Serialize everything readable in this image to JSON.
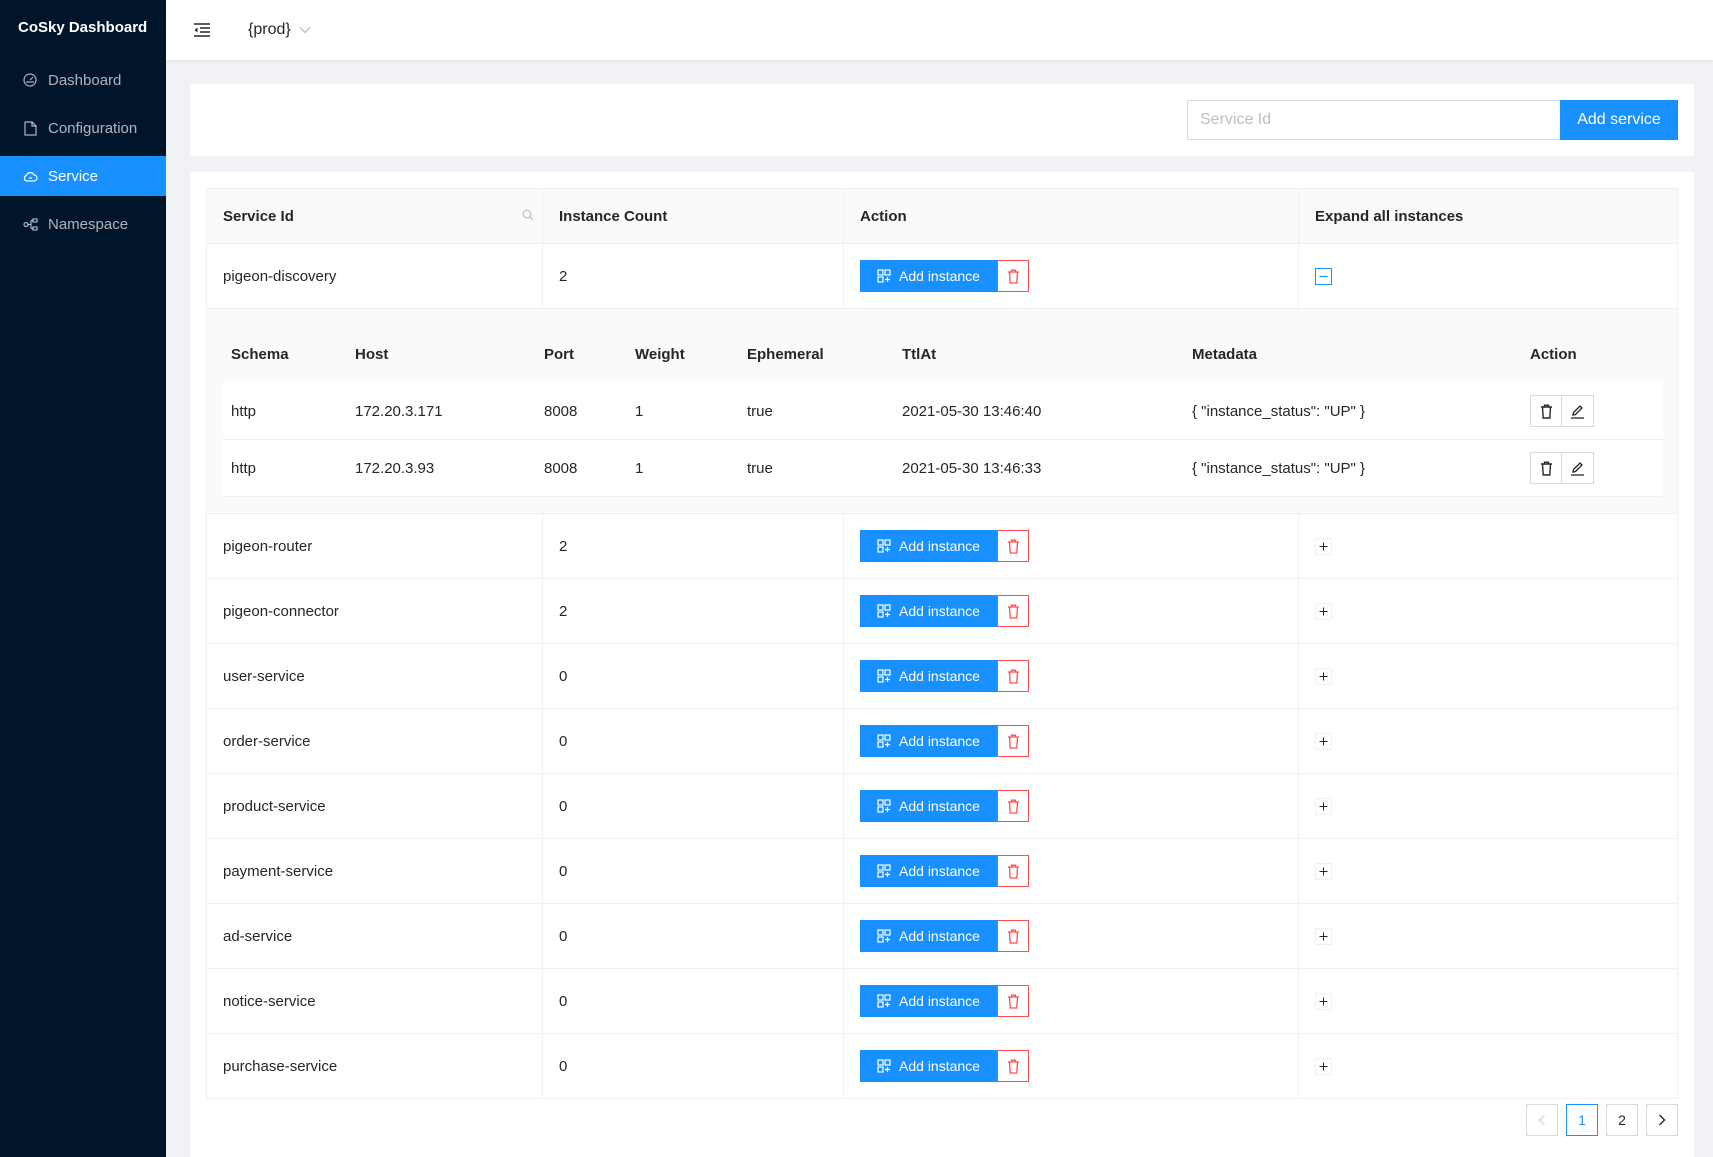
{
  "app": {
    "title": "CoSky Dashboard"
  },
  "sidebar": {
    "items": [
      {
        "label": "Dashboard",
        "icon": "dashboard-icon"
      },
      {
        "label": "Configuration",
        "icon": "file-icon"
      },
      {
        "label": "Service",
        "icon": "cloud-icon",
        "active": true
      },
      {
        "label": "Namespace",
        "icon": "cluster-icon"
      }
    ]
  },
  "header": {
    "namespace": "{prod}"
  },
  "search": {
    "placeholder": "Service Id",
    "value": "",
    "add_label": "Add service"
  },
  "table": {
    "headers": {
      "service_id": "Service Id",
      "instance_count": "Instance Count",
      "action": "Action",
      "expand": "Expand all instances"
    },
    "add_instance_label": "Add instance",
    "rows": [
      {
        "service_id": "pigeon-discovery",
        "count": "2",
        "expanded": true
      },
      {
        "service_id": "pigeon-router",
        "count": "2"
      },
      {
        "service_id": "pigeon-connector",
        "count": "2"
      },
      {
        "service_id": "user-service",
        "count": "0"
      },
      {
        "service_id": "order-service",
        "count": "0"
      },
      {
        "service_id": "product-service",
        "count": "0"
      },
      {
        "service_id": "payment-service",
        "count": "0"
      },
      {
        "service_id": "ad-service",
        "count": "0"
      },
      {
        "service_id": "notice-service",
        "count": "0"
      },
      {
        "service_id": "purchase-service",
        "count": "0"
      }
    ]
  },
  "instances": {
    "headers": {
      "schema": "Schema",
      "host": "Host",
      "port": "Port",
      "weight": "Weight",
      "ephemeral": "Ephemeral",
      "ttlat": "TtlAt",
      "metadata": "Metadata",
      "action": "Action"
    },
    "rows": [
      {
        "schema": "http",
        "host": "172.20.3.171",
        "port": "8008",
        "weight": "1",
        "ephemeral": "true",
        "ttlat": "2021-05-30 13:46:40",
        "metadata": "{ \"instance_status\": \"UP\" }"
      },
      {
        "schema": "http",
        "host": "172.20.3.93",
        "port": "8008",
        "weight": "1",
        "ephemeral": "true",
        "ttlat": "2021-05-30 13:46:33",
        "metadata": "{ \"instance_status\": \"UP\" }"
      }
    ]
  },
  "pagination": {
    "pages": [
      "1",
      "2"
    ],
    "current": "1"
  },
  "colors": {
    "primary": "#1890ff",
    "danger": "#ff4d4f",
    "sider": "#001529"
  }
}
